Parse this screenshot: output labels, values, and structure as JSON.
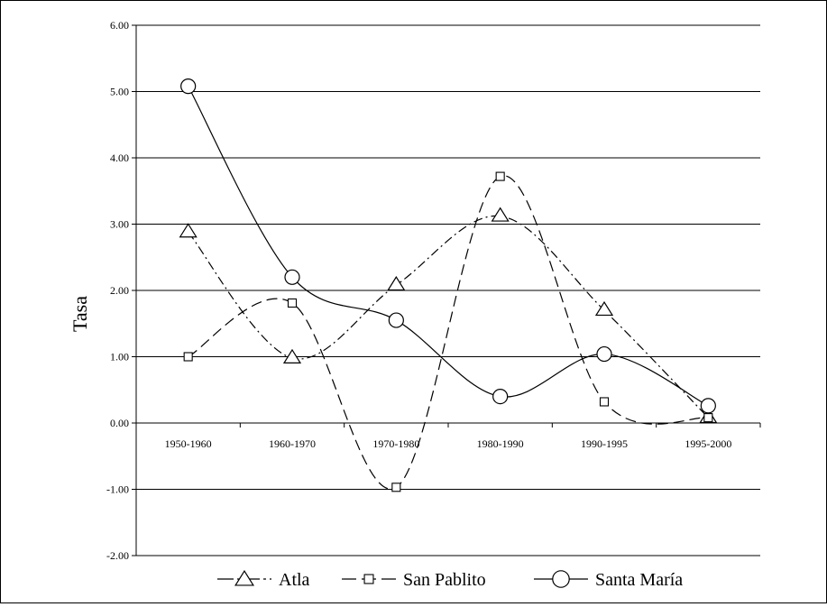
{
  "chart_data": {
    "type": "line",
    "title": "",
    "xlabel": "",
    "ylabel": "Tasa",
    "ylim": [
      -2,
      6
    ],
    "yticks": [
      "6.00",
      "5.00",
      "4.00",
      "3.00",
      "2.00",
      "1.00",
      "0.00",
      "-1.00",
      "-2.00"
    ],
    "ytick_values": [
      6,
      5,
      4,
      3,
      2,
      1,
      0,
      -1,
      -2
    ],
    "categories": [
      "1950-1960",
      "1960-1970",
      "1970-1980",
      "1980-1990",
      "1990-1995",
      "1995-2000"
    ],
    "grid": "horizontal",
    "legend_position": "bottom",
    "series": [
      {
        "name": "Atla",
        "marker": "triangle",
        "line_style": "dash-dot",
        "values": [
          2.88,
          0.98,
          2.08,
          3.12,
          1.7,
          0.08
        ]
      },
      {
        "name": "San Pablito",
        "marker": "square",
        "line_style": "dashed",
        "values": [
          1.0,
          1.81,
          -0.97,
          3.72,
          0.32,
          0.08
        ]
      },
      {
        "name": "Santa María",
        "marker": "circle",
        "line_style": "solid",
        "values": [
          5.08,
          2.2,
          1.55,
          0.4,
          1.04,
          0.26
        ]
      }
    ]
  }
}
